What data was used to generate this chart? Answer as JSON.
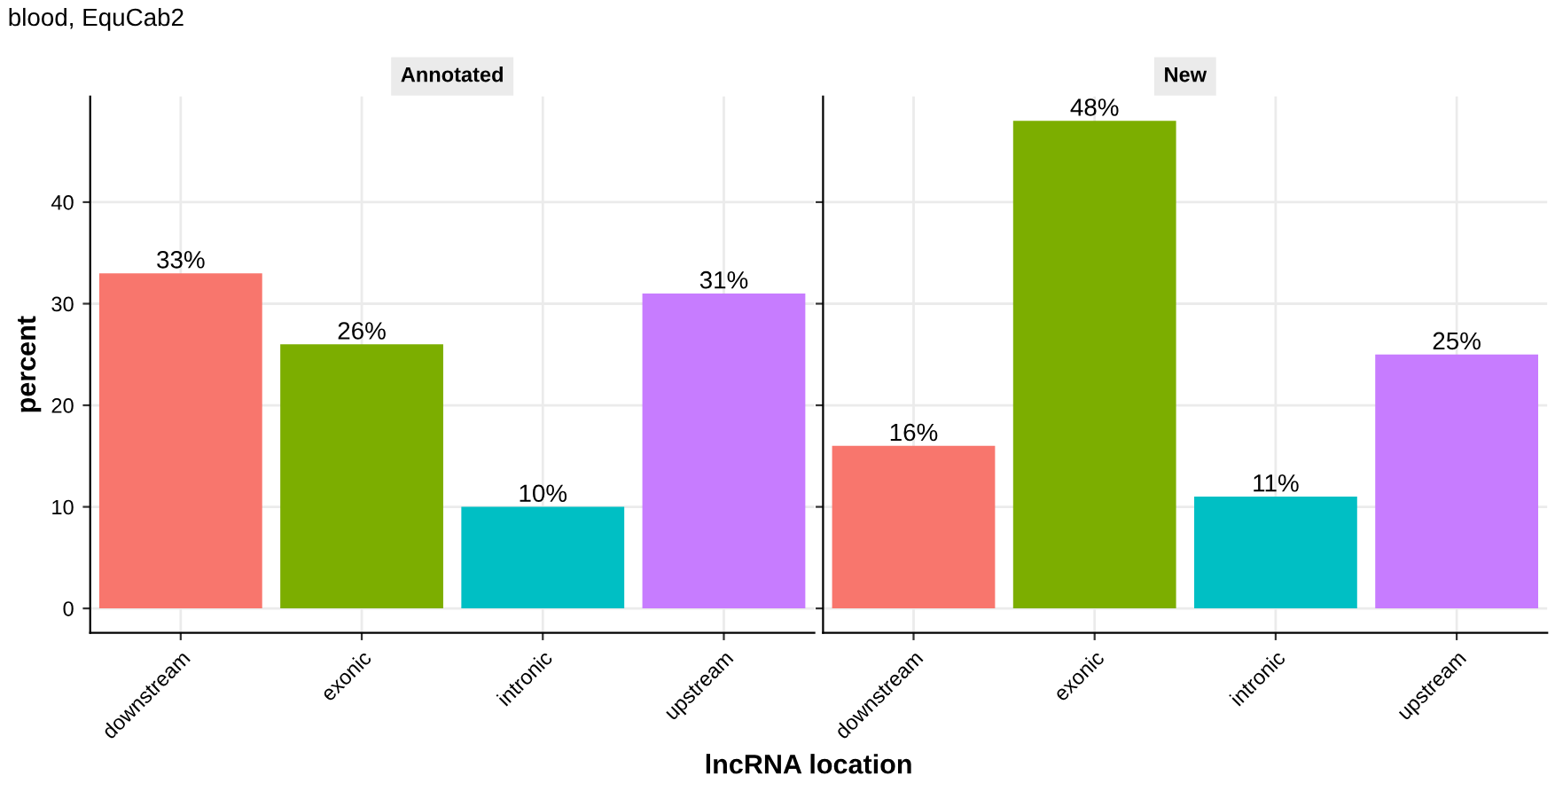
{
  "chart_data": [
    {
      "type": "bar",
      "title": "Annotated",
      "ylabel": "percent",
      "xlabel": "lncRNA location",
      "annotations": [
        "blood, EquCab2"
      ],
      "categories": [
        "downstream",
        "exonic",
        "intronic",
        "upstream"
      ],
      "values": [
        33,
        26,
        10,
        31
      ],
      "value_labels": [
        "33%",
        "26%",
        "10%",
        "31%"
      ],
      "colors": [
        "#f8766d",
        "#7cae00",
        "#00bfc4",
        "#c77cff"
      ],
      "ylim": [
        -2.4,
        50.4
      ],
      "yticks": [
        0,
        10,
        20,
        30,
        40
      ],
      "grid": true
    },
    {
      "type": "bar",
      "title": "New",
      "categories": [
        "downstream",
        "exonic",
        "intronic",
        "upstream"
      ],
      "values": [
        16,
        48,
        11,
        25
      ],
      "value_labels": [
        "16%",
        "48%",
        "11%",
        "25%"
      ],
      "colors": [
        "#f8766d",
        "#7cae00",
        "#00bfc4",
        "#c77cff"
      ],
      "ylim": [
        -2.4,
        50.4
      ],
      "yticks": [
        0,
        10,
        20,
        30,
        40
      ],
      "grid": true,
      "tick_labels": "x"
    }
  ]
}
